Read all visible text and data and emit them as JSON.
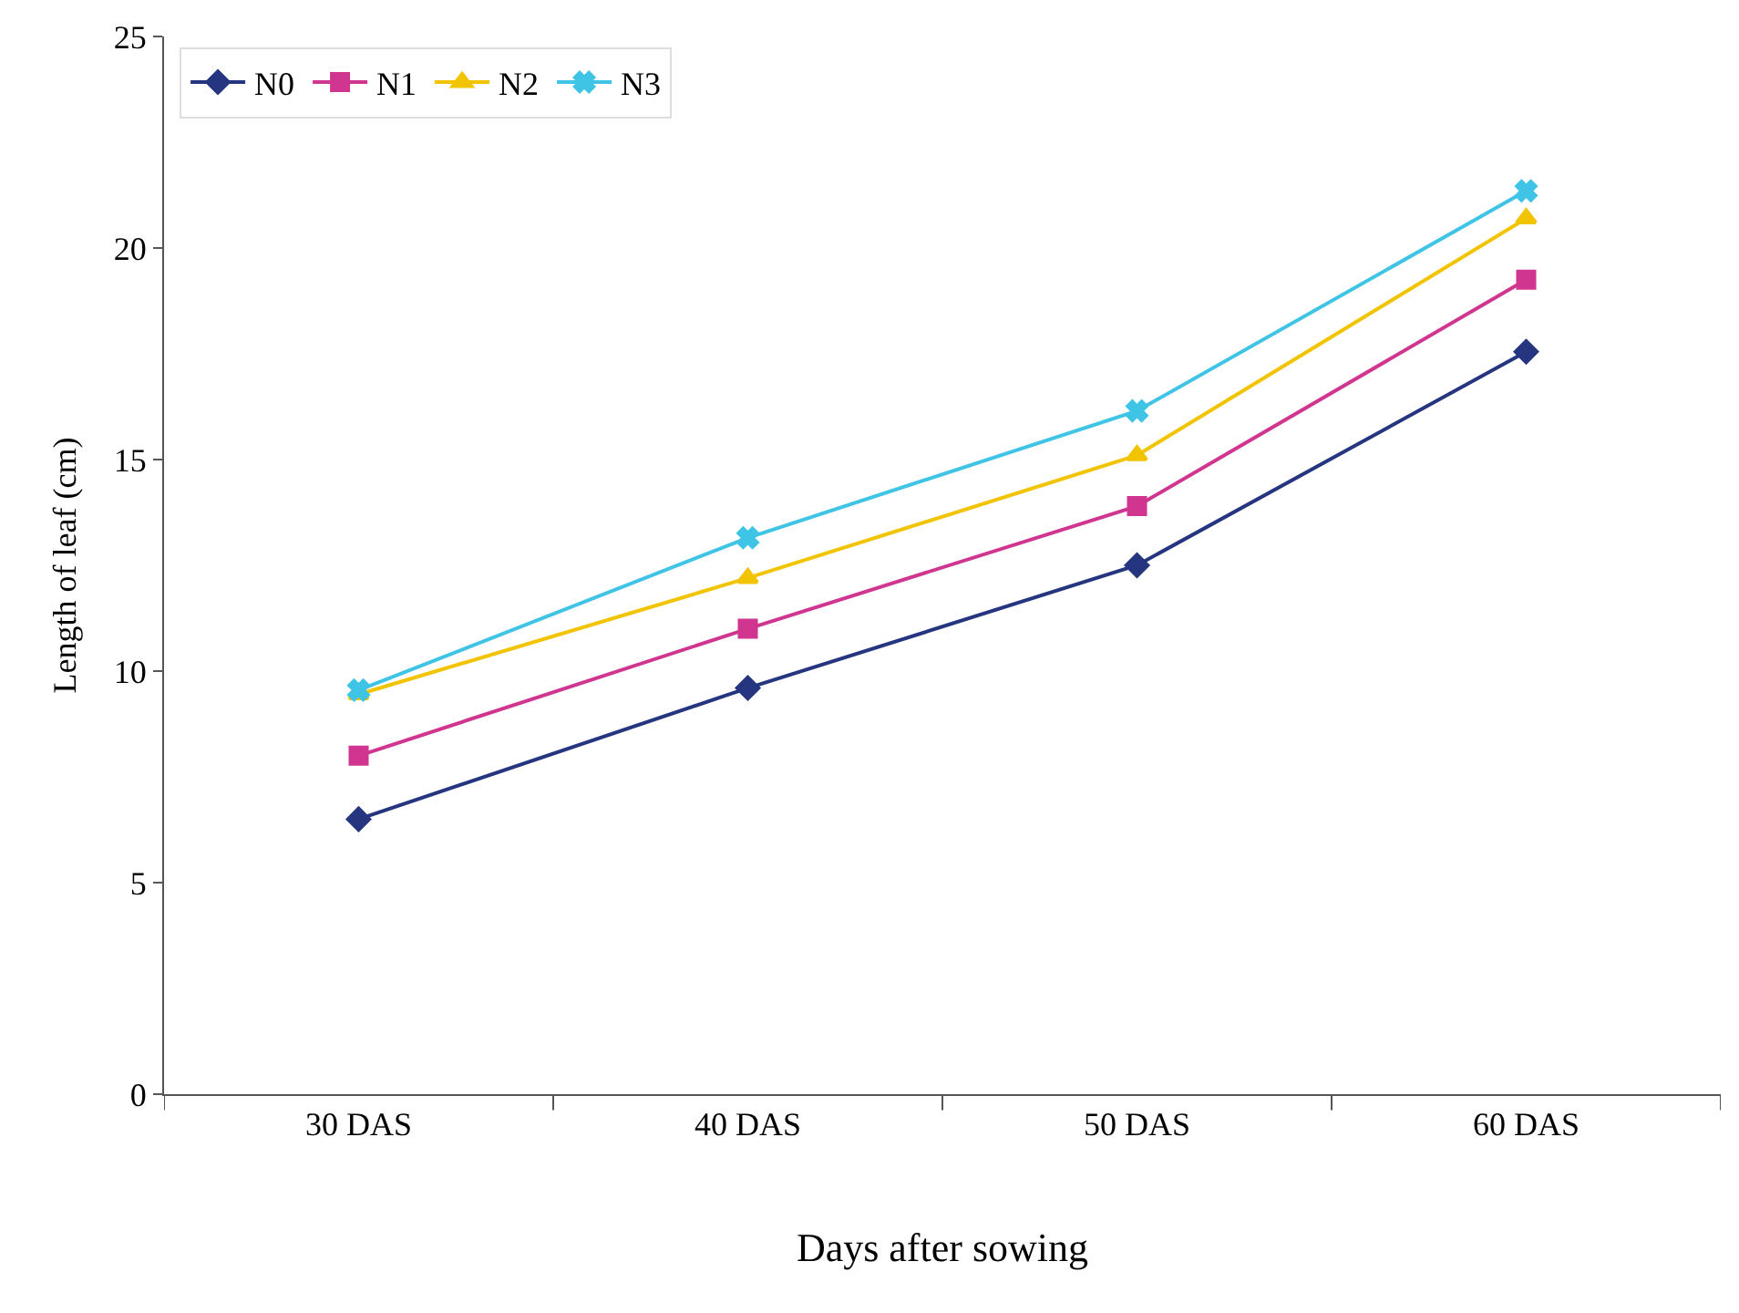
{
  "chart_data": {
    "type": "line",
    "xlabel": "Days after sowing",
    "ylabel": "Length of leaf (cm)",
    "categories": [
      "30 DAS",
      "40 DAS",
      "50 DAS",
      "60 DAS"
    ],
    "series": [
      {
        "name": "N0",
        "color": "#25357f",
        "marker": "diamond",
        "values": [
          6.5,
          9.6,
          12.5,
          17.55
        ]
      },
      {
        "name": "N1",
        "color": "#d0358f",
        "marker": "square",
        "values": [
          8.0,
          11.0,
          13.9,
          19.25
        ]
      },
      {
        "name": "N2",
        "color": "#f2c400",
        "marker": "triangle",
        "values": [
          9.45,
          12.2,
          15.1,
          20.7
        ]
      },
      {
        "name": "N3",
        "color": "#3fc4e6",
        "marker": "cross",
        "values": [
          9.55,
          13.15,
          16.15,
          21.35
        ]
      }
    ],
    "ylim": [
      0,
      25
    ],
    "yticks": [
      0,
      5,
      10,
      15,
      20,
      25
    ],
    "legend": "top left",
    "line_style": "solid"
  }
}
